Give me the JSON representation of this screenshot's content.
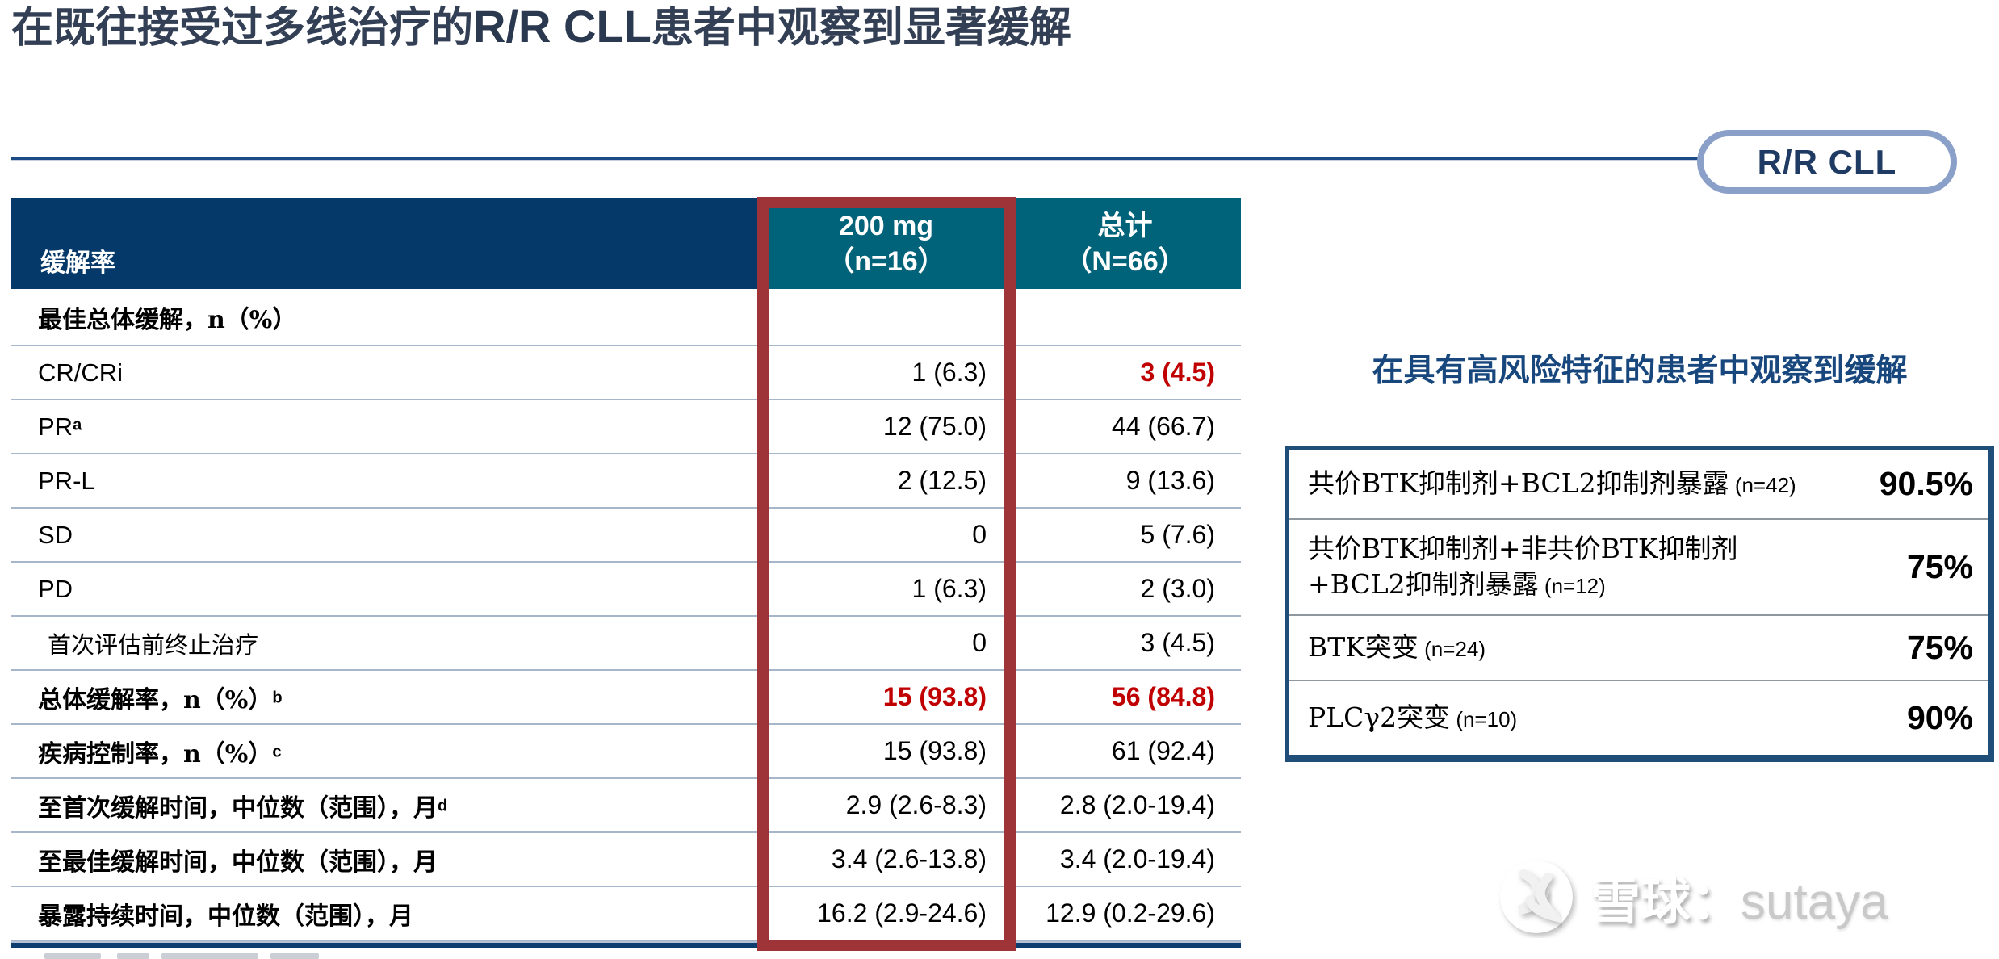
{
  "title": {
    "part1": "在既往接受过多线治疗的",
    "part2": "R/R CLL",
    "part3": "患者中观察到显著缓解"
  },
  "badge_label": "R/R CLL",
  "main_table": {
    "header": {
      "col1": "缓解率",
      "col2_line1": "200 mg",
      "col2_line2": "（n=16）",
      "col3_line1": "总计",
      "col3_line2": "（N=66）"
    },
    "rows": [
      {
        "label": "最佳总体缓解，n（%）",
        "sup": "",
        "v1": "",
        "v2": "",
        "section": true
      },
      {
        "label": "CR/CRi",
        "latin": true,
        "v1": "1 (6.3)",
        "v2": "3 (4.5)",
        "red2": true
      },
      {
        "label": "PR",
        "latin": true,
        "sup": "a",
        "v1": "12 (75.0)",
        "v2": "44 (66.7)"
      },
      {
        "label": "PR-L",
        "latin": true,
        "v1": "2 (12.5)",
        "v2": "9 (13.6)"
      },
      {
        "label": "SD",
        "latin": true,
        "v1": "0",
        "v2": "5 (7.6)"
      },
      {
        "label": "PD",
        "latin": true,
        "v1": "1 (6.3)",
        "v2": "2 (3.0)"
      },
      {
        "label": "首次评估前终止治疗",
        "light": true,
        "v1": "0",
        "v2": "3 (4.5)"
      },
      {
        "label": "总体缓解率，n（%）",
        "sup": "b",
        "v1": "15 (93.8)",
        "v2": "56 (84.8)",
        "red1": true,
        "red2": true
      },
      {
        "label": "疾病控制率，n（%）",
        "sup": "c",
        "v1": "15 (93.8)",
        "v2": "61 (92.4)"
      },
      {
        "label": "至首次缓解时间，中位数（范围），月",
        "sup": "d",
        "v1": "2.9 (2.6-8.3)",
        "v2": "2.8 (2.0-19.4)"
      },
      {
        "label": "至最佳缓解时间，中位数（范围），月",
        "v1": "3.4 (2.6-13.8)",
        "v2": "3.4 (2.0-19.4)"
      },
      {
        "label": "暴露持续时间，中位数（范围），月",
        "v1": "16.2 (2.9-24.6)",
        "v2": "12.9 (0.2-29.6)"
      }
    ]
  },
  "highlight": {
    "column": "200 mg（n=16）"
  },
  "risk_panel": {
    "heading": "在具有高风险特征的患者中观察到缓解",
    "rows": [
      {
        "label_lines": [
          "共价BTK抑制剂+BCL2抑制剂暴露"
        ],
        "n": "(n=42)",
        "value": "90.5%"
      },
      {
        "label_lines": [
          "共价BTK抑制剂+非共价BTK抑制剂",
          "+BCL2抑制剂暴露"
        ],
        "n": "(n=12)",
        "value": "75%"
      },
      {
        "label_lines": [
          "BTK突变"
        ],
        "n": "(n=24)",
        "value": "75%"
      },
      {
        "label_lines": [
          "PLCγ2突变"
        ],
        "n": "(n=10)",
        "value": "90%"
      }
    ]
  },
  "watermark": {
    "site": "雪球",
    "separator": "：",
    "user": "sutaya"
  },
  "colors": {
    "header_navy": "#05396a",
    "header_teal": "#00637a",
    "highlight_box_red": "#9e3338",
    "accent_red": "#c00000",
    "rule_navy": "#1c4a87",
    "badge_border": "#8ba0c9",
    "risk_border": "#1f4e79",
    "risk_heading_blue": "#17477d",
    "row_divider": "#a6b7cb"
  }
}
